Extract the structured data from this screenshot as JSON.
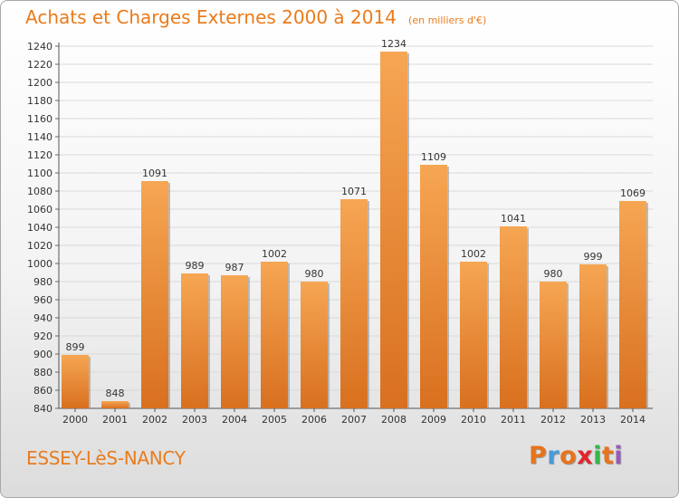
{
  "header": {
    "title": "Achats et Charges Externes 2000 à 2014",
    "subtitle": "(en milliers d'€)"
  },
  "footer": {
    "place": "ESSEY-LèS-NANCY",
    "logo_letters": [
      "P",
      "r",
      "o",
      "x",
      "i",
      "t",
      "i"
    ],
    "logo_colors": [
      "#e8731a",
      "#4a9ad8",
      "#e8731a",
      "#e2242b",
      "#39b54a",
      "#e8731a",
      "#9b59b6"
    ]
  },
  "colors": {
    "bar_light": "#f6a653",
    "bar_dark": "#d8701f",
    "bar_shadow": "#8a8a8a",
    "title": "#ea7b1a",
    "grid": "#d9d9d9"
  },
  "chart_data": {
    "type": "bar",
    "title": "Achats et Charges Externes 2000 à 2014",
    "subtitle": "(en milliers d'€)",
    "xlabel": "",
    "ylabel": "",
    "categories": [
      "2000",
      "2001",
      "2002",
      "2003",
      "2004",
      "2005",
      "2006",
      "2007",
      "2008",
      "2009",
      "2010",
      "2011",
      "2012",
      "2013",
      "2014"
    ],
    "values": [
      899,
      848,
      1091,
      989,
      987,
      1002,
      980,
      1071,
      1234,
      1109,
      1002,
      1041,
      980,
      999,
      1069
    ],
    "ylim": [
      840,
      1240
    ],
    "ytick_step": 20,
    "grid": true,
    "legend": "none"
  }
}
